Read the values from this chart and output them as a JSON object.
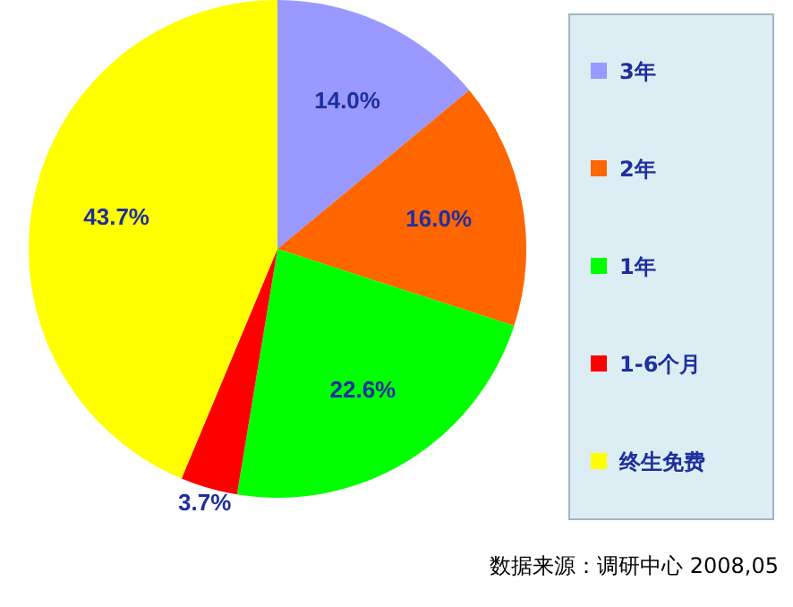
{
  "chart_data": {
    "type": "pie",
    "categories": [
      "3年",
      "2年",
      "1年",
      "1-6个月",
      "终生免费"
    ],
    "values": [
      14.0,
      16.0,
      22.6,
      3.7,
      43.7
    ],
    "colors": [
      "#9999ff",
      "#ff6600",
      "#00ff00",
      "#ff0000",
      "#ffff00"
    ],
    "value_labels": [
      "14.0%",
      "16.0%",
      "22.6%",
      "3.7%",
      "43.7%"
    ],
    "legend": "right",
    "annotations": [
      "数据来源：调研中心 2008,05"
    ]
  }
}
